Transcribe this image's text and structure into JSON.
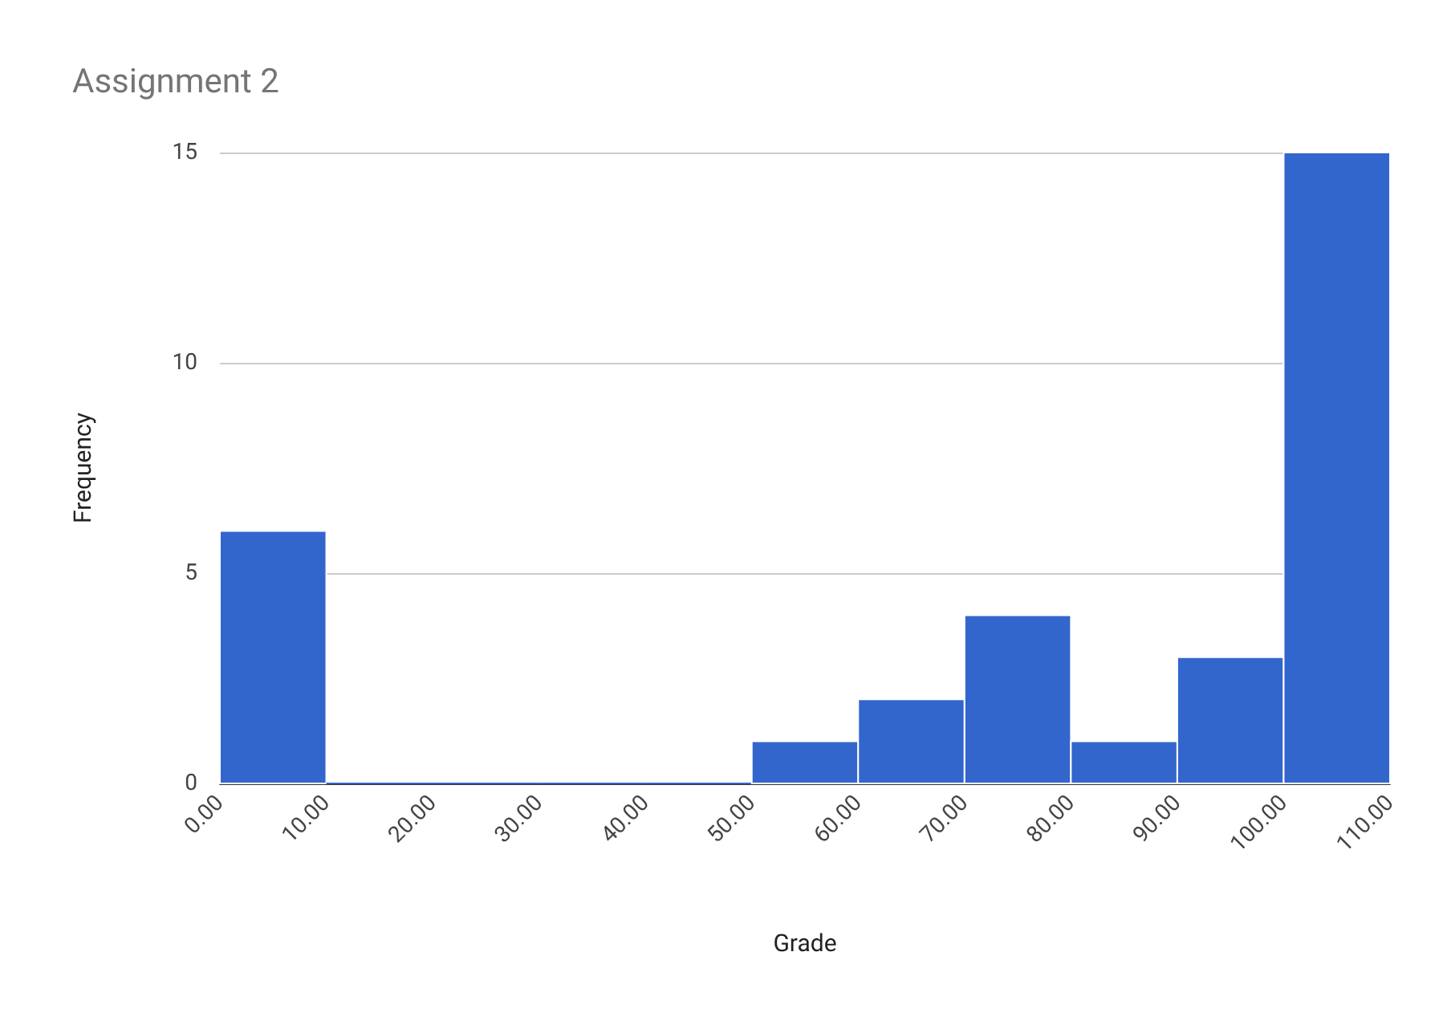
{
  "chart_data": {
    "type": "histogram",
    "title": "Assignment 2",
    "xlabel": "Grade",
    "ylabel": "Frequency",
    "bins": [
      0,
      10,
      20,
      30,
      40,
      50,
      60,
      70,
      80,
      90,
      100,
      110
    ],
    "values": [
      6,
      0,
      0,
      0,
      0,
      1,
      2,
      4,
      1,
      3,
      15
    ],
    "color": "#3366cc",
    "xlim": [
      0,
      110
    ],
    "xticks": [
      {
        "value": 0,
        "label": "0.00"
      },
      {
        "value": 10,
        "label": "10.00"
      },
      {
        "value": 20,
        "label": "20.00"
      },
      {
        "value": 30,
        "label": "30.00"
      },
      {
        "value": 40,
        "label": "40.00"
      },
      {
        "value": 50,
        "label": "50.00"
      },
      {
        "value": 60,
        "label": "60.00"
      },
      {
        "value": 70,
        "label": "70.00"
      },
      {
        "value": 80,
        "label": "80.00"
      },
      {
        "value": 90,
        "label": "90.00"
      },
      {
        "value": 100,
        "label": "100.00"
      },
      {
        "value": 110,
        "label": "110.00"
      }
    ],
    "ylim": [
      0,
      15
    ],
    "yticks": [
      0,
      5,
      10,
      15
    ],
    "grid": "y"
  }
}
